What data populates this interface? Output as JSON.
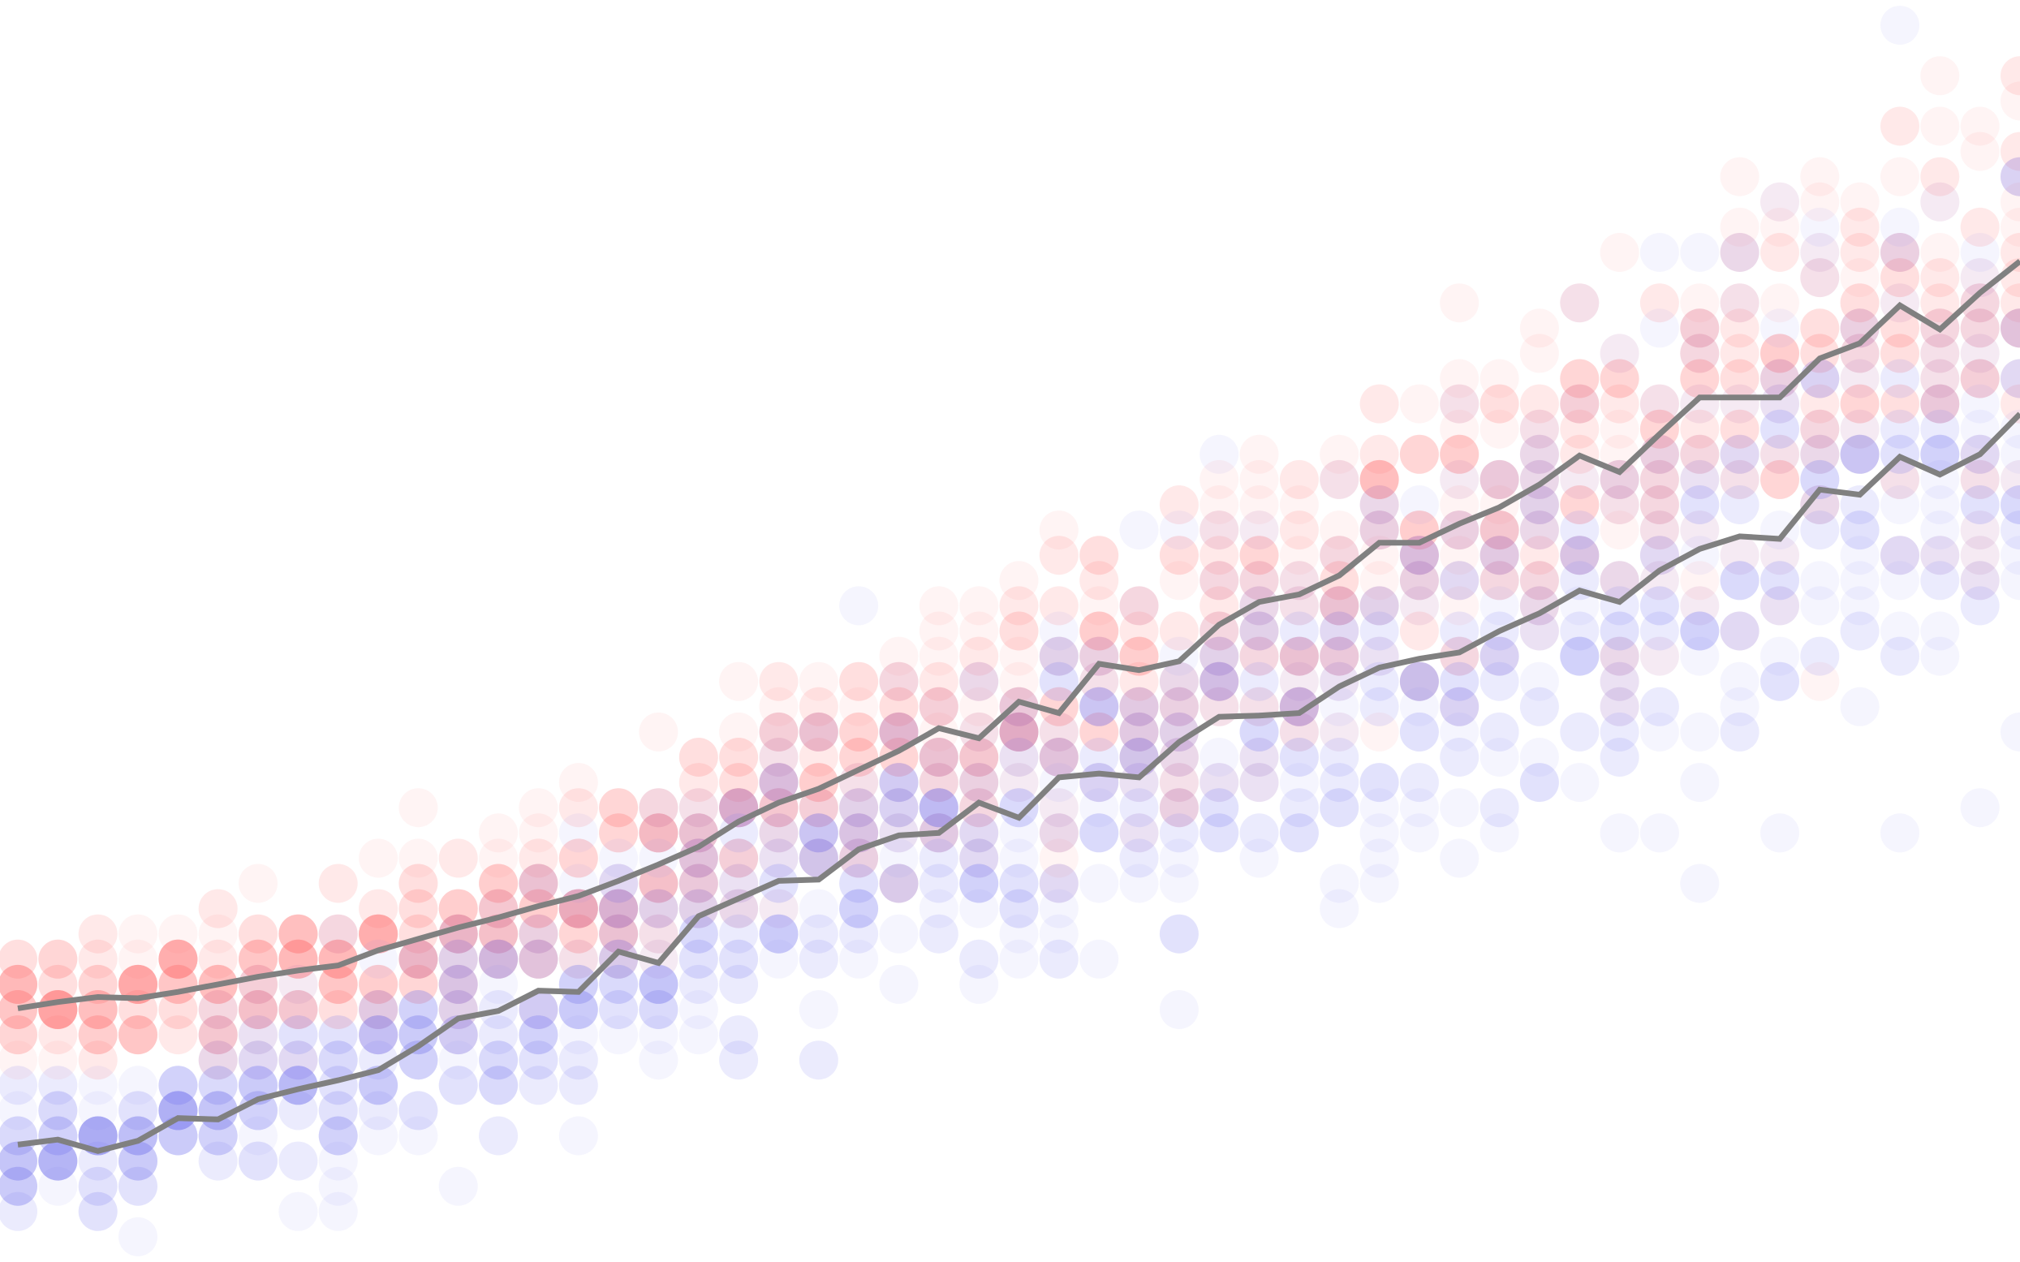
{
  "chart_data": {
    "type": "scatter",
    "title": "",
    "xlabel": "",
    "ylabel": "",
    "grid": false,
    "legend": "none",
    "xlim": [
      0,
      50
    ],
    "ylim": [
      0,
      100
    ],
    "x": [
      0,
      1,
      2,
      3,
      4,
      5,
      6,
      7,
      8,
      9,
      10,
      11,
      12,
      13,
      14,
      15,
      16,
      17,
      18,
      19,
      20,
      21,
      22,
      23,
      24,
      25,
      26,
      27,
      28,
      29,
      30,
      31,
      32,
      33,
      34,
      35,
      36,
      37,
      38,
      39,
      40,
      41,
      42,
      43,
      44,
      45,
      46,
      47,
      48,
      49,
      50
    ],
    "series": [
      {
        "color": "#ff7272",
        "point_opacity": 0.08,
        "spread": [
          6,
          6,
          6,
          6,
          7,
          7,
          7,
          8,
          8,
          8,
          9,
          9,
          9,
          10,
          10,
          10,
          11,
          11,
          11,
          12,
          12,
          12,
          13,
          13,
          13,
          14,
          14,
          14,
          15,
          15,
          15,
          16,
          16,
          16,
          17,
          17,
          17,
          18,
          18,
          18,
          19,
          19,
          19,
          20,
          20,
          20,
          20,
          21,
          21,
          21,
          21
        ],
        "line_values": [
          20.1,
          20.6,
          21.0,
          20.9,
          21.4,
          22.0,
          22.6,
          23.1,
          23.5,
          24.7,
          25.6,
          26.5,
          27.3,
          28.2,
          29.0,
          30.2,
          31.5,
          32.9,
          34.9,
          36.4,
          37.5,
          39.0,
          40.5,
          42.3,
          41.5,
          44.4,
          43.5,
          47.4,
          46.9,
          47.6,
          50.5,
          52.3,
          52.9,
          54.4,
          57.0,
          57.0,
          58.5,
          59.8,
          61.6,
          63.9,
          62.6,
          65.6,
          68.5,
          68.5,
          68.5,
          71.6,
          72.8,
          75.8,
          73.9,
          76.8,
          79.3
        ]
      },
      {
        "color": "#7f7ff2",
        "point_opacity": 0.08,
        "spread": [
          6,
          6,
          7,
          7,
          8,
          8,
          9,
          9,
          10,
          10,
          11,
          11,
          12,
          12,
          13,
          13,
          14,
          14,
          15,
          15,
          16,
          16,
          17,
          17,
          18,
          18,
          19,
          19,
          20,
          20,
          21,
          21,
          22,
          22,
          23,
          23,
          24,
          24,
          25,
          25,
          25,
          26,
          26,
          26,
          27,
          27,
          27,
          27,
          27,
          27,
          27
        ],
        "line_values": [
          9.3,
          9.7,
          8.8,
          9.6,
          11.4,
          11.3,
          12.9,
          13.7,
          14.4,
          15.2,
          17.1,
          19.3,
          19.9,
          21.5,
          21.4,
          24.6,
          23.7,
          27.4,
          28.8,
          30.2,
          30.3,
          32.7,
          33.8,
          34.0,
          36.4,
          35.2,
          38.4,
          38.7,
          38.4,
          41.2,
          43.2,
          43.3,
          43.5,
          45.6,
          47.1,
          47.8,
          48.3,
          50.0,
          51.4,
          53.2,
          52.3,
          54.8,
          56.5,
          57.5,
          57.3,
          61.2,
          60.8,
          63.8,
          62.4,
          64.0,
          67.2
        ]
      }
    ],
    "line_color": "#808080"
  }
}
